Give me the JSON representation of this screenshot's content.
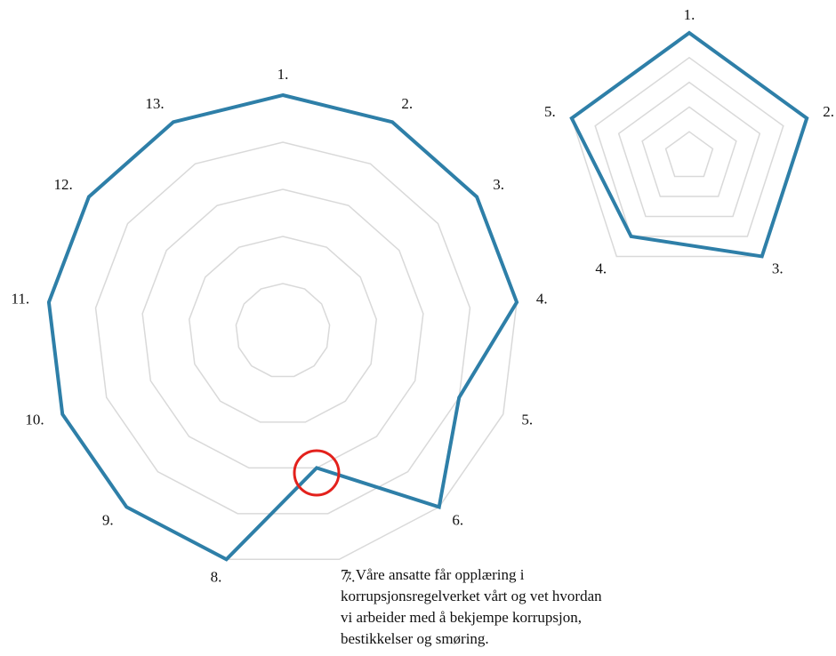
{
  "chart_data": [
    {
      "type": "radar",
      "categories": [
        "1.",
        "2.",
        "3.",
        "4.",
        "5.",
        "6.",
        "7.",
        "8.",
        "9.",
        "10.",
        "11.",
        "12.",
        "13."
      ],
      "values": [
        5,
        5,
        5,
        5,
        4,
        5,
        3,
        5,
        5,
        5,
        5,
        5,
        5
      ],
      "color": "#2e7fa8",
      "ylim": [
        0,
        5
      ],
      "yticks": [
        1,
        2,
        3,
        4,
        5
      ],
      "grid": true
    },
    {
      "type": "radar",
      "categories": [
        "1.",
        "2.",
        "3.",
        "4.",
        "5."
      ],
      "values": [
        5,
        5,
        5,
        4,
        5
      ],
      "color": "#2e7fa8",
      "ylim": [
        0,
        5
      ],
      "yticks": [
        1,
        2,
        3,
        4,
        5
      ],
      "grid": true
    }
  ],
  "annotation": {
    "lines": [
      "7. Våre ansatte får opplæring i",
      "korrupsjonsregelverket vårt og vet hvordan",
      "vi arbeider med å bekjempe korrupsjon,",
      "bestikkelser og smøring."
    ]
  }
}
